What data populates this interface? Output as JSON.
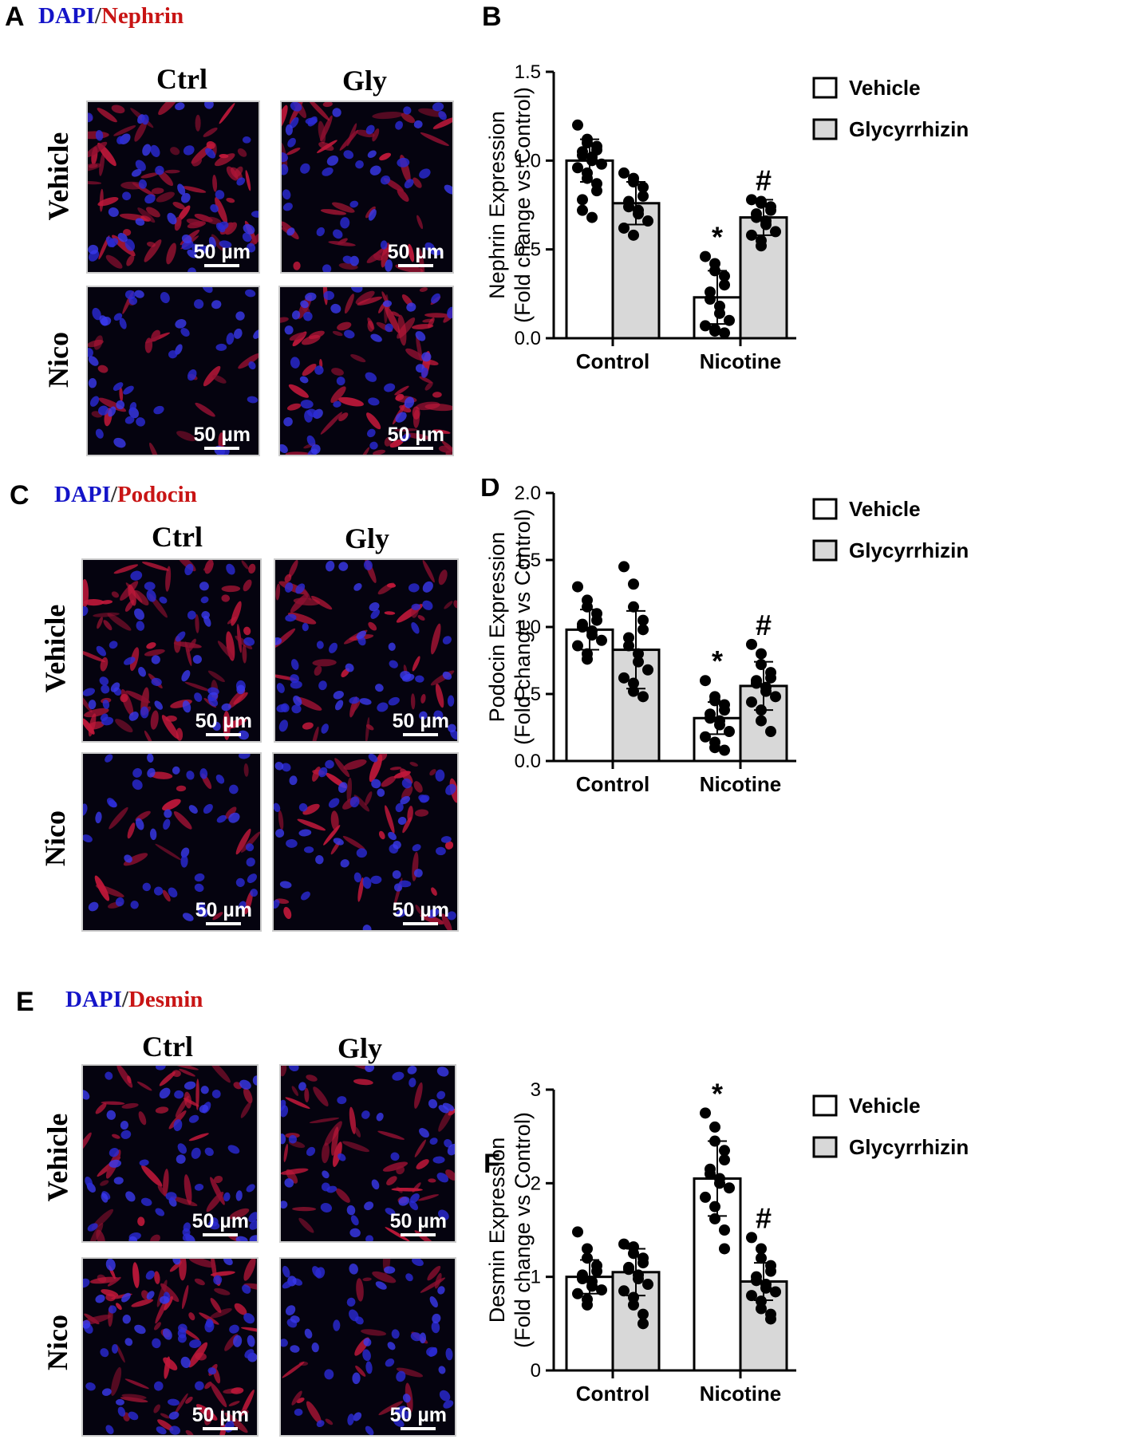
{
  "panels": [
    {
      "letter": "A",
      "stain": {
        "dapi": "DAPI",
        "sep": "/",
        "marker": "Nephrin"
      },
      "col_headers": [
        "Ctrl",
        "Gly"
      ],
      "row_headers": [
        "Vehicle",
        "Nico"
      ],
      "scale_label": "50 µm"
    },
    {
      "letter": "C",
      "stain": {
        "dapi": "DAPI",
        "sep": "/",
        "marker": "Podocin"
      },
      "col_headers": [
        "Ctrl",
        "Gly"
      ],
      "row_headers": [
        "Vehicle",
        "Nico"
      ],
      "scale_label": "50 µm"
    },
    {
      "letter": "E",
      "stain": {
        "dapi": "DAPI",
        "sep": "/",
        "marker": "Desmin"
      },
      "col_headers": [
        "Ctrl",
        "Gly"
      ],
      "row_headers": [
        "Vehicle",
        "Nico"
      ],
      "scale_label": "50 µm"
    }
  ],
  "chart_data": [
    {
      "letter": "B",
      "type": "bar",
      "categories": [
        "Control",
        "Nicotine"
      ],
      "ylabel": "Nephrin Expression",
      "ylabel2": "(Fold change vs Control)",
      "ylim": [
        0,
        1.5
      ],
      "yticks": [
        0.0,
        0.5,
        1.0,
        1.5
      ],
      "ytick_labels": [
        "0.0",
        "0.5",
        "1.0",
        "1.5"
      ],
      "legend": "top-right",
      "series": [
        {
          "name": "Vehicle",
          "color": "#ffffff",
          "values": [
            1.0,
            0.23
          ],
          "sd": [
            0.12,
            0.15
          ],
          "marks": [
            "",
            "*"
          ],
          "points": [
            [
              1.2,
              1.12,
              1.1,
              1.08,
              1.06,
              1.05,
              1.03,
              1.02,
              1.0,
              0.98,
              0.96,
              0.93,
              0.9,
              0.87,
              0.83,
              0.78,
              0.72,
              0.68
            ],
            [
              0.46,
              0.42,
              0.38,
              0.35,
              0.3,
              0.26,
              0.22,
              0.18,
              0.14,
              0.1,
              0.07,
              0.05,
              0.04,
              0.03
            ]
          ]
        },
        {
          "name": "Glycyrrhizin",
          "color": "#d8d8d8",
          "values": [
            0.76,
            0.68
          ],
          "sd": [
            0.12,
            0.1
          ],
          "marks": [
            "",
            "#"
          ],
          "points": [
            [
              0.93,
              0.9,
              0.88,
              0.85,
              0.8,
              0.77,
              0.74,
              0.72,
              0.7,
              0.66,
              0.62,
              0.58
            ],
            [
              0.78,
              0.77,
              0.76,
              0.74,
              0.72,
              0.7,
              0.68,
              0.66,
              0.64,
              0.6,
              0.58,
              0.55,
              0.52
            ]
          ]
        }
      ]
    },
    {
      "letter": "D",
      "type": "bar",
      "categories": [
        "Control",
        "Nicotine"
      ],
      "ylabel": "Podocin Expression",
      "ylabel2": "(Fold change vs Control)",
      "ylim": [
        0,
        2.0
      ],
      "yticks": [
        0.0,
        0.5,
        1.0,
        1.5,
        2.0
      ],
      "ytick_labels": [
        "0.0",
        "0.5",
        "1.0",
        "1.5",
        "2.0"
      ],
      "legend": "top-right",
      "series": [
        {
          "name": "Vehicle",
          "color": "#ffffff",
          "values": [
            0.98,
            0.32
          ],
          "sd": [
            0.15,
            0.12
          ],
          "marks": [
            "",
            "*"
          ],
          "points": [
            [
              1.3,
              1.2,
              1.15,
              1.1,
              1.05,
              1.02,
              1.0,
              0.97,
              0.94,
              0.9,
              0.86,
              0.8,
              0.76
            ],
            [
              0.6,
              0.48,
              0.45,
              0.42,
              0.38,
              0.35,
              0.32,
              0.3,
              0.27,
              0.22,
              0.18,
              0.14,
              0.1,
              0.08
            ]
          ]
        },
        {
          "name": "Glycyrrhizin",
          "color": "#d8d8d8",
          "values": [
            0.83,
            0.56
          ],
          "sd": [
            0.29,
            0.18
          ],
          "marks": [
            "",
            "#"
          ],
          "points": [
            [
              1.45,
              1.32,
              1.15,
              1.05,
              0.98,
              0.92,
              0.86,
              0.8,
              0.74,
              0.68,
              0.62,
              0.58,
              0.52,
              0.48
            ],
            [
              0.87,
              0.8,
              0.72,
              0.66,
              0.62,
              0.6,
              0.58,
              0.55,
              0.52,
              0.48,
              0.44,
              0.38,
              0.3,
              0.22
            ]
          ]
        }
      ]
    },
    {
      "letter": "F",
      "type": "bar",
      "categories": [
        "Control",
        "Nicotine"
      ],
      "ylabel": "Desmin Expression",
      "ylabel2": "(Fold change vs Control)",
      "ylim": [
        0,
        3
      ],
      "yticks": [
        0,
        1,
        2,
        3
      ],
      "ytick_labels": [
        "0",
        "1",
        "2",
        "3"
      ],
      "legend": "top-right",
      "series": [
        {
          "name": "Vehicle",
          "color": "#ffffff",
          "values": [
            1.0,
            2.05
          ],
          "sd": [
            0.18,
            0.4
          ],
          "marks": [
            "",
            "*"
          ],
          "points": [
            [
              1.48,
              1.3,
              1.2,
              1.12,
              1.06,
              1.02,
              0.98,
              0.95,
              0.9,
              0.86,
              0.82,
              0.76,
              0.7
            ],
            [
              2.75,
              2.6,
              2.45,
              2.35,
              2.25,
              2.15,
              2.1,
              2.05,
              2.0,
              1.95,
              1.85,
              1.75,
              1.62,
              1.5,
              1.3
            ]
          ]
        },
        {
          "name": "Glycyrrhizin",
          "color": "#d8d8d8",
          "values": [
            1.05,
            0.95
          ],
          "sd": [
            0.25,
            0.2
          ],
          "marks": [
            "",
            "#"
          ],
          "points": [
            [
              1.35,
              1.32,
              1.25,
              1.2,
              1.15,
              1.1,
              1.08,
              1.02,
              0.98,
              0.92,
              0.85,
              0.78,
              0.7,
              0.6,
              0.5
            ],
            [
              1.42,
              1.3,
              1.2,
              1.12,
              1.06,
              1.0,
              0.96,
              0.92,
              0.88,
              0.84,
              0.8,
              0.74,
              0.66,
              0.6,
              0.55
            ]
          ]
        }
      ]
    }
  ]
}
